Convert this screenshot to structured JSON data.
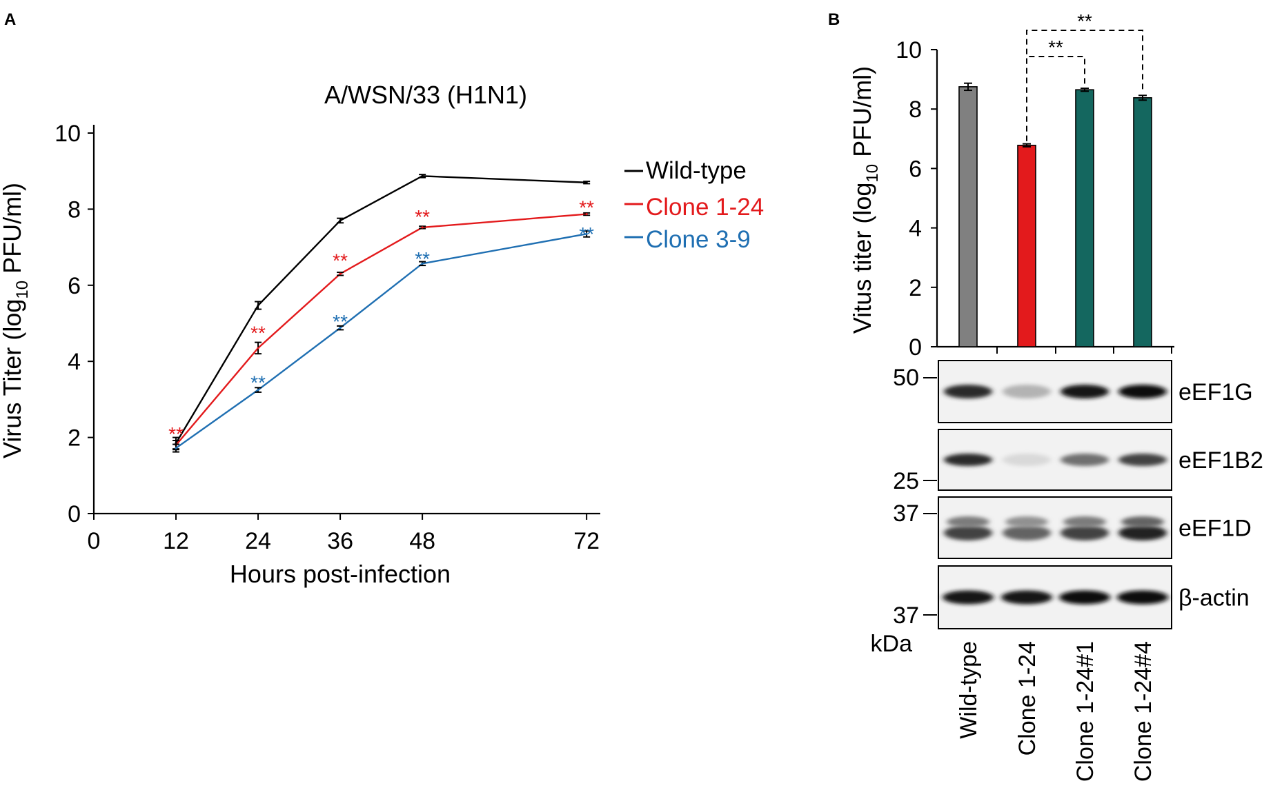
{
  "panel_a": {
    "letter": "A",
    "chart_data": {
      "type": "line",
      "title": "A/WSN/33 (H1N1)",
      "xlabel": "Hours post-infection",
      "ylabel_main": "Virus Titer (log",
      "ylabel_sub": "10",
      "ylabel_end": " PFU/ml)",
      "x": [
        12,
        24,
        36,
        48,
        72
      ],
      "xticks": [
        "0",
        "12",
        "24",
        "36",
        "48",
        "72"
      ],
      "yticks": [
        "0",
        "2",
        "4",
        "6",
        "8",
        "10"
      ],
      "xlim": [
        0,
        74
      ],
      "ylim": [
        0,
        10
      ],
      "series": [
        {
          "name": "Wild-type",
          "color": "#000000",
          "values": [
            1.85,
            5.47,
            7.7,
            8.87,
            8.7
          ],
          "err": [
            0.15,
            0.1,
            0.06,
            0.04,
            0.03
          ]
        },
        {
          "name": "Clone 1-24",
          "color": "#e31a1c",
          "values": [
            1.8,
            4.35,
            6.3,
            7.52,
            7.87
          ],
          "err": [
            0.12,
            0.15,
            0.04,
            0.03,
            0.03
          ]
        },
        {
          "name": "Clone 3-9",
          "color": "#1f6fb2",
          "values": [
            1.72,
            3.25,
            4.88,
            6.57,
            7.35
          ],
          "err": [
            0.1,
            0.06,
            0.05,
            0.05,
            0.08
          ]
        }
      ],
      "annotations": [
        {
          "text": "**",
          "color": "#e31a1c",
          "x": 12,
          "y": 2.25
        },
        {
          "text": "**",
          "color": "#e31a1c",
          "x": 24,
          "y": 4.9
        },
        {
          "text": "**",
          "color": "#1f6fb2",
          "x": 24,
          "y": 3.6
        },
        {
          "text": "**",
          "color": "#e31a1c",
          "x": 36,
          "y": 6.8
        },
        {
          "text": "**",
          "color": "#1f6fb2",
          "x": 36,
          "y": 5.2
        },
        {
          "text": "**",
          "color": "#e31a1c",
          "x": 48,
          "y": 7.95
        },
        {
          "text": "**",
          "color": "#1f6fb2",
          "x": 48,
          "y": 6.85
        },
        {
          "text": "**",
          "color": "#e31a1c",
          "x": 72,
          "y": 8.2
        },
        {
          "text": "**",
          "color": "#1f6fb2",
          "x": 72,
          "y": 7.5
        }
      ]
    }
  },
  "panel_b": {
    "letter": "B",
    "chart_data": {
      "type": "bar",
      "ylabel_main": "Vitus titer (log",
      "ylabel_sub": "10",
      "ylabel_end": " PFU/ml)",
      "categories": [
        "Wild-type",
        "Clone 1-24",
        "Clone 1-24#1",
        "Clone 1-24#4"
      ],
      "category_colors": [
        "#000000",
        "#e31a1c",
        "#14675f",
        "#14675f"
      ],
      "bar_colors": [
        "#808080",
        "#e31a1c",
        "#14675f",
        "#14675f"
      ],
      "values": [
        8.75,
        6.78,
        8.65,
        8.38
      ],
      "err": [
        0.12,
        0.05,
        0.05,
        0.08
      ],
      "yticks": [
        "0",
        "2",
        "4",
        "6",
        "8",
        "10"
      ],
      "ylim": [
        0,
        10
      ],
      "significance": [
        {
          "from": 1,
          "to": 2,
          "label": "**"
        },
        {
          "from": 1,
          "to": 3,
          "label": "**"
        }
      ]
    },
    "blot": {
      "rows": [
        {
          "protein": "eEF1G",
          "marker_top": "50",
          "marker_bottom": "",
          "intensity": [
            0.85,
            0.25,
            0.95,
            1.0
          ]
        },
        {
          "protein": "eEF1B2",
          "marker_top": "",
          "marker_bottom": "25",
          "intensity": [
            0.85,
            0.08,
            0.55,
            0.75
          ]
        },
        {
          "protein": "eEF1D",
          "marker_top": "37",
          "marker_bottom": "",
          "intensity": [
            0.75,
            0.6,
            0.75,
            0.9
          ]
        },
        {
          "protein": "β-actin",
          "marker_top": "",
          "marker_bottom": "37",
          "intensity": [
            0.95,
            0.95,
            0.97,
            0.97
          ]
        }
      ],
      "unit": "kDa"
    }
  }
}
